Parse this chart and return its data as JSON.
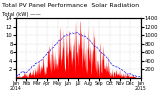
{
  "title": "Total PV Panel Performance Solar Radiation",
  "title2": "Total (kW) ——",
  "bg_color": "#ffffff",
  "plot_bg": "#ffffff",
  "grid_color": "#aaaaaa",
  "bar_color": "#ff0000",
  "line_color": "#0000ee",
  "left_ylim": [
    0,
    14
  ],
  "right_ylim": [
    0,
    1400
  ],
  "left_yticks": [
    2,
    4,
    6,
    8,
    10,
    12,
    14
  ],
  "right_yticks": [
    200,
    400,
    600,
    800,
    1000,
    1200,
    1400
  ],
  "title_fontsize": 4.5,
  "tick_fontsize": 3.8,
  "n_points": 365
}
